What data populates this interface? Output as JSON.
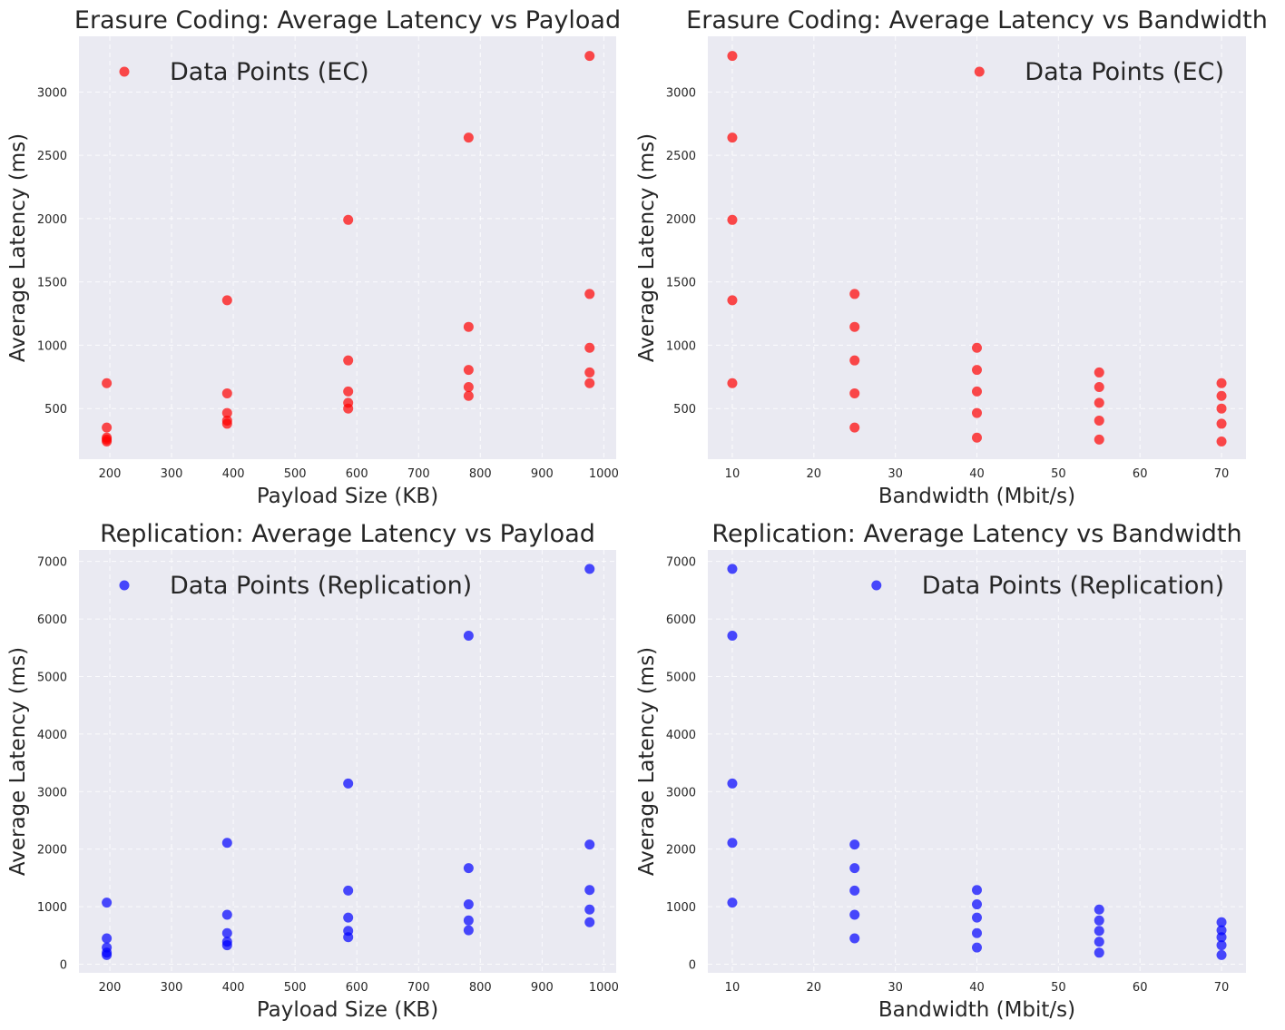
{
  "chart_data": [
    {
      "type": "scatter",
      "title": "Erasure Coding: Average Latency vs Payload",
      "xlabel": "Payload Size (KB)",
      "ylabel": "Average Latency (ms)",
      "xlim": [
        150,
        1020
      ],
      "ylim": [
        100,
        3440
      ],
      "xticks": [
        200,
        300,
        400,
        500,
        600,
        700,
        800,
        900,
        1000
      ],
      "yticks": [
        500,
        1000,
        1500,
        2000,
        2500,
        3000
      ],
      "grid": true,
      "legend_position": "top-left",
      "series": [
        {
          "name": "Data Points (EC)",
          "color": "#ff0000",
          "x": [
            195,
            195,
            195,
            195,
            195,
            390,
            390,
            390,
            390,
            390,
            586,
            586,
            586,
            586,
            586,
            781,
            781,
            781,
            781,
            781,
            977,
            977,
            977,
            977,
            977
          ],
          "y": [
            700,
            350,
            270,
            255,
            240,
            1355,
            620,
            465,
            405,
            380,
            1990,
            880,
            635,
            545,
            500,
            2640,
            1145,
            805,
            670,
            600,
            3285,
            1405,
            980,
            785,
            700
          ]
        }
      ]
    },
    {
      "type": "scatter",
      "title": "Erasure Coding: Average Latency vs Bandwidth",
      "xlabel": "Bandwidth (Mbit/s)",
      "ylabel": "Average Latency (ms)",
      "xlim": [
        7,
        73
      ],
      "ylim": [
        100,
        3440
      ],
      "xticks": [
        10,
        20,
        30,
        40,
        50,
        60,
        70
      ],
      "yticks": [
        500,
        1000,
        1500,
        2000,
        2500,
        3000
      ],
      "grid": true,
      "legend_position": "top-right",
      "series": [
        {
          "name": "Data Points (EC)",
          "color": "#ff0000",
          "x": [
            10,
            10,
            10,
            10,
            10,
            25,
            25,
            25,
            25,
            25,
            40,
            40,
            40,
            40,
            40,
            55,
            55,
            55,
            55,
            55,
            70,
            70,
            70,
            70,
            70
          ],
          "y": [
            3285,
            2640,
            1990,
            1355,
            700,
            1405,
            1145,
            880,
            620,
            350,
            980,
            805,
            635,
            465,
            270,
            785,
            670,
            545,
            405,
            255,
            700,
            600,
            500,
            380,
            240
          ]
        }
      ]
    },
    {
      "type": "scatter",
      "title": "Replication: Average Latency vs Payload",
      "xlabel": "Payload Size (KB)",
      "ylabel": "Average Latency (ms)",
      "xlim": [
        150,
        1020
      ],
      "ylim": [
        -150,
        7200
      ],
      "xticks": [
        200,
        300,
        400,
        500,
        600,
        700,
        800,
        900,
        1000
      ],
      "yticks": [
        0,
        1000,
        2000,
        3000,
        4000,
        5000,
        6000,
        7000
      ],
      "grid": true,
      "legend_position": "top-left",
      "series": [
        {
          "name": "Data Points (Replication)",
          "color": "#0000ff",
          "x": [
            195,
            195,
            195,
            195,
            195,
            390,
            390,
            390,
            390,
            390,
            586,
            586,
            586,
            586,
            586,
            781,
            781,
            781,
            781,
            781,
            977,
            977,
            977,
            977,
            977
          ],
          "y": [
            1070,
            450,
            290,
            200,
            160,
            2110,
            860,
            540,
            390,
            330,
            3140,
            1280,
            810,
            580,
            470,
            5710,
            1670,
            1040,
            760,
            590,
            6870,
            2080,
            1290,
            950,
            730
          ]
        }
      ]
    },
    {
      "type": "scatter",
      "title": "Replication: Average Latency vs Bandwidth",
      "xlabel": "Bandwidth (Mbit/s)",
      "ylabel": "Average Latency (ms)",
      "xlim": [
        7,
        73
      ],
      "ylim": [
        -150,
        7200
      ],
      "xticks": [
        10,
        20,
        30,
        40,
        50,
        60,
        70
      ],
      "yticks": [
        0,
        1000,
        2000,
        3000,
        4000,
        5000,
        6000,
        7000
      ],
      "grid": true,
      "legend_position": "top-right",
      "series": [
        {
          "name": "Data Points (Replication)",
          "color": "#0000ff",
          "x": [
            10,
            10,
            10,
            10,
            10,
            25,
            25,
            25,
            25,
            25,
            40,
            40,
            40,
            40,
            40,
            55,
            55,
            55,
            55,
            55,
            70,
            70,
            70,
            70,
            70
          ],
          "y": [
            6870,
            5710,
            3140,
            2110,
            1070,
            2080,
            1670,
            1280,
            860,
            450,
            1290,
            1040,
            810,
            540,
            290,
            950,
            760,
            580,
            390,
            200,
            730,
            590,
            470,
            330,
            160
          ]
        }
      ]
    }
  ]
}
